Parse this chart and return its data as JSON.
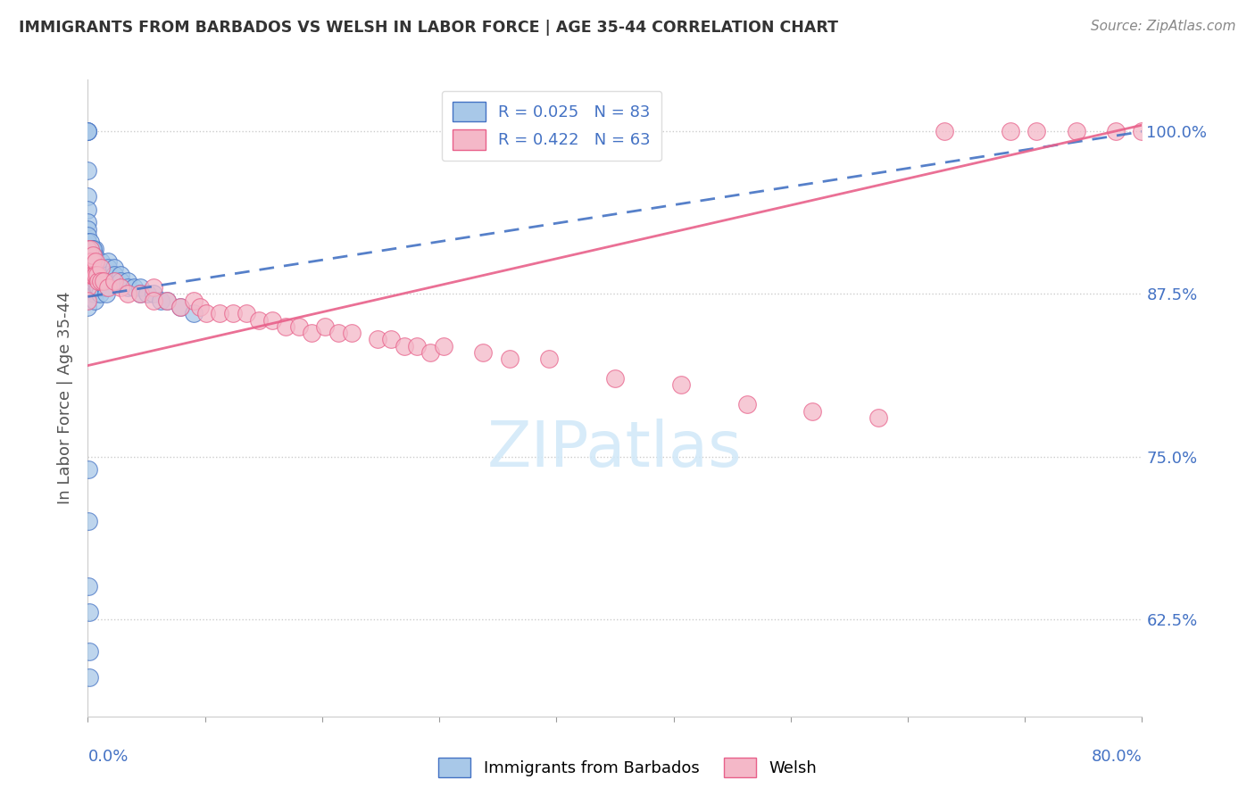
{
  "title": "IMMIGRANTS FROM BARBADOS VS WELSH IN LABOR FORCE | AGE 35-44 CORRELATION CHART",
  "source": "Source: ZipAtlas.com",
  "ylabel": "In Labor Force | Age 35-44",
  "legend_label1": "Immigrants from Barbados",
  "legend_label2": "Welsh",
  "R1": 0.025,
  "N1": 83,
  "R2": 0.422,
  "N2": 63,
  "color_blue": "#a8c8e8",
  "color_blue_edge": "#4472c4",
  "color_pink": "#f4b8c8",
  "color_pink_edge": "#e8608a",
  "color_trendline_blue": "#4472c4",
  "color_trendline_pink": "#e8608a",
  "background": "#ffffff",
  "xlim_pct": [
    0.0,
    80.0
  ],
  "ylim_pct": [
    55.0,
    104.0
  ],
  "yticks": [
    62.5,
    75.0,
    87.5,
    100.0
  ],
  "xticks_count": 10,
  "blue_trend_x0": 0.0,
  "blue_trend_y0": 87.3,
  "blue_trend_x1": 80.0,
  "blue_trend_y1": 100.0,
  "pink_trend_x0": 0.0,
  "pink_trend_y0": 82.0,
  "pink_trend_x1": 80.0,
  "pink_trend_y1": 100.5,
  "blue_scatter": {
    "x": [
      0.0,
      0.0,
      0.0,
      0.0,
      0.0,
      0.0,
      0.0,
      0.0,
      0.0,
      0.0,
      0.0,
      0.0,
      0.0,
      0.0,
      0.0,
      0.0,
      0.0,
      0.0,
      0.0,
      0.0,
      0.5,
      0.5,
      0.5,
      0.5,
      0.5,
      0.5,
      0.5,
      0.5,
      0.5,
      1.0,
      1.0,
      1.0,
      1.0,
      1.5,
      1.5,
      1.5,
      2.0,
      2.0,
      2.0,
      2.5,
      2.5,
      3.0,
      3.0,
      3.5,
      4.0,
      4.0,
      4.5,
      5.0,
      5.5,
      6.0,
      7.0,
      8.0,
      0.2,
      0.2,
      0.2,
      0.2,
      0.2,
      0.2,
      0.2,
      0.3,
      0.3,
      0.3,
      0.3,
      0.3,
      0.4,
      0.4,
      0.4,
      0.4,
      0.4,
      0.4,
      0.6,
      0.7,
      0.8,
      0.9,
      1.2,
      1.3,
      1.4,
      0.05,
      0.05,
      0.05,
      0.08,
      0.1,
      0.12
    ],
    "y": [
      100.0,
      100.0,
      100.0,
      97.0,
      95.0,
      94.0,
      93.0,
      92.5,
      92.0,
      91.5,
      91.0,
      90.5,
      90.0,
      89.5,
      89.0,
      88.5,
      88.0,
      87.5,
      87.0,
      86.5,
      91.0,
      90.5,
      90.0,
      89.5,
      89.0,
      88.5,
      88.0,
      87.5,
      87.0,
      90.0,
      89.5,
      89.0,
      88.5,
      90.0,
      89.5,
      89.0,
      89.5,
      89.0,
      88.5,
      89.0,
      88.5,
      88.5,
      88.0,
      88.0,
      88.0,
      87.5,
      87.5,
      87.5,
      87.0,
      87.0,
      86.5,
      86.0,
      91.5,
      91.0,
      90.5,
      90.0,
      89.5,
      89.0,
      88.5,
      91.0,
      90.5,
      90.0,
      89.5,
      89.0,
      91.0,
      90.5,
      90.0,
      89.5,
      89.0,
      88.5,
      88.5,
      88.0,
      88.0,
      87.5,
      88.5,
      88.0,
      87.5,
      74.0,
      70.0,
      65.0,
      63.0,
      60.0,
      58.0
    ]
  },
  "pink_scatter": {
    "x": [
      0.0,
      0.0,
      0.0,
      0.0,
      0.0,
      0.2,
      0.2,
      0.2,
      0.3,
      0.3,
      0.4,
      0.4,
      0.5,
      0.6,
      0.6,
      0.7,
      0.8,
      1.0,
      1.0,
      1.2,
      1.5,
      2.0,
      2.5,
      3.0,
      4.0,
      5.0,
      5.0,
      6.0,
      7.0,
      8.0,
      8.5,
      9.0,
      10.0,
      11.0,
      12.0,
      13.0,
      14.0,
      15.0,
      16.0,
      17.0,
      18.0,
      19.0,
      20.0,
      22.0,
      23.0,
      24.0,
      25.0,
      26.0,
      27.0,
      30.0,
      32.0,
      35.0,
      40.0,
      45.0,
      50.0,
      55.0,
      60.0,
      65.0,
      70.0,
      72.0,
      75.0,
      78.0,
      80.0
    ],
    "y": [
      91.0,
      90.0,
      89.0,
      88.0,
      87.0,
      91.0,
      90.0,
      89.0,
      90.0,
      89.0,
      90.5,
      89.0,
      89.0,
      90.0,
      89.0,
      89.0,
      88.5,
      89.5,
      88.5,
      88.5,
      88.0,
      88.5,
      88.0,
      87.5,
      87.5,
      88.0,
      87.0,
      87.0,
      86.5,
      87.0,
      86.5,
      86.0,
      86.0,
      86.0,
      86.0,
      85.5,
      85.5,
      85.0,
      85.0,
      84.5,
      85.0,
      84.5,
      84.5,
      84.0,
      84.0,
      83.5,
      83.5,
      83.0,
      83.5,
      83.0,
      82.5,
      82.5,
      81.0,
      80.5,
      79.0,
      78.5,
      78.0,
      100.0,
      100.0,
      100.0,
      100.0,
      100.0,
      100.0
    ]
  }
}
